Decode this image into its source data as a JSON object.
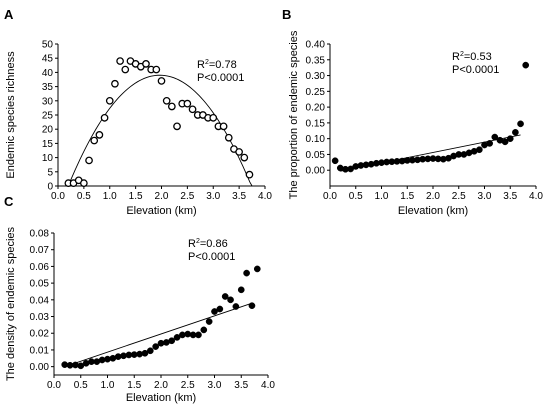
{
  "chart_data": [
    {
      "id": "A",
      "type": "scatter",
      "panel_label": "A",
      "xlabel": "Elevation (km)",
      "ylabel": "Endemic species richness",
      "xlim": [
        0,
        4.0
      ],
      "ylim": [
        0,
        50
      ],
      "xticks": [
        "0.0",
        "0.5",
        "1.0",
        "1.5",
        "2.0",
        "2.5",
        "3.0",
        "3.5",
        "4.0"
      ],
      "yticks": [
        "0",
        "5",
        "10",
        "15",
        "20",
        "25",
        "30",
        "35",
        "40",
        "45",
        "50"
      ],
      "marker": "open",
      "stats": {
        "r2_prefix": "R",
        "r2_sup": "2",
        "r2_value": "=0.78",
        "p": "P<0.0001"
      },
      "fit": {
        "kind": "quadratic",
        "a": -12.45,
        "b": 49.0,
        "c": -9.2
      },
      "points": [
        {
          "x": 0.2,
          "y": 1
        },
        {
          "x": 0.3,
          "y": 1
        },
        {
          "x": 0.4,
          "y": 2
        },
        {
          "x": 0.5,
          "y": 1
        },
        {
          "x": 0.6,
          "y": 9
        },
        {
          "x": 0.7,
          "y": 16
        },
        {
          "x": 0.8,
          "y": 18
        },
        {
          "x": 0.9,
          "y": 24
        },
        {
          "x": 1.0,
          "y": 30
        },
        {
          "x": 1.1,
          "y": 36
        },
        {
          "x": 1.2,
          "y": 44
        },
        {
          "x": 1.3,
          "y": 41
        },
        {
          "x": 1.4,
          "y": 44
        },
        {
          "x": 1.5,
          "y": 43
        },
        {
          "x": 1.6,
          "y": 42
        },
        {
          "x": 1.7,
          "y": 43
        },
        {
          "x": 1.8,
          "y": 41
        },
        {
          "x": 1.9,
          "y": 41
        },
        {
          "x": 2.0,
          "y": 37
        },
        {
          "x": 2.1,
          "y": 30
        },
        {
          "x": 2.2,
          "y": 28
        },
        {
          "x": 2.3,
          "y": 21
        },
        {
          "x": 2.4,
          "y": 29
        },
        {
          "x": 2.5,
          "y": 29
        },
        {
          "x": 2.6,
          "y": 27
        },
        {
          "x": 2.7,
          "y": 25
        },
        {
          "x": 2.8,
          "y": 25
        },
        {
          "x": 2.9,
          "y": 24
        },
        {
          "x": 3.0,
          "y": 24
        },
        {
          "x": 3.1,
          "y": 21
        },
        {
          "x": 3.2,
          "y": 21
        },
        {
          "x": 3.3,
          "y": 17
        },
        {
          "x": 3.4,
          "y": 13
        },
        {
          "x": 3.5,
          "y": 12
        },
        {
          "x": 3.6,
          "y": 10
        },
        {
          "x": 3.7,
          "y": 4
        }
      ]
    },
    {
      "id": "B",
      "type": "scatter",
      "panel_label": "B",
      "xlabel": "Elevation (km)",
      "ylabel": "The proportion of endemic species",
      "xlim": [
        0,
        4.0
      ],
      "ylim": [
        -0.05,
        0.4
      ],
      "xticks": [
        "0.0",
        "0.5",
        "1.0",
        "1.5",
        "2.0",
        "2.5",
        "3.0",
        "3.5",
        "4.0"
      ],
      "yticks": [
        "0.00",
        "0.05",
        "0.10",
        "0.15",
        "0.20",
        "0.25",
        "0.30",
        "0.35",
        "0.40"
      ],
      "marker": "filled",
      "stats": {
        "r2_prefix": "R",
        "r2_sup": "2",
        "r2_value": "=0.53",
        "p": "P<0.0001"
      },
      "fit": {
        "kind": "linear",
        "x0": 0.2,
        "y0": -0.003,
        "x1": 3.7,
        "y1": 0.112
      },
      "points": [
        {
          "x": 0.1,
          "y": 0.03
        },
        {
          "x": 0.2,
          "y": 0.007
        },
        {
          "x": 0.3,
          "y": 0.003
        },
        {
          "x": 0.4,
          "y": 0.004
        },
        {
          "x": 0.5,
          "y": 0.012
        },
        {
          "x": 0.6,
          "y": 0.015
        },
        {
          "x": 0.7,
          "y": 0.017
        },
        {
          "x": 0.8,
          "y": 0.019
        },
        {
          "x": 0.9,
          "y": 0.022
        },
        {
          "x": 1.0,
          "y": 0.024
        },
        {
          "x": 1.1,
          "y": 0.026
        },
        {
          "x": 1.2,
          "y": 0.027
        },
        {
          "x": 1.3,
          "y": 0.028
        },
        {
          "x": 1.4,
          "y": 0.029
        },
        {
          "x": 1.5,
          "y": 0.031
        },
        {
          "x": 1.6,
          "y": 0.032
        },
        {
          "x": 1.7,
          "y": 0.033
        },
        {
          "x": 1.8,
          "y": 0.035
        },
        {
          "x": 1.9,
          "y": 0.036
        },
        {
          "x": 2.0,
          "y": 0.037
        },
        {
          "x": 2.1,
          "y": 0.036
        },
        {
          "x": 2.2,
          "y": 0.035
        },
        {
          "x": 2.3,
          "y": 0.038
        },
        {
          "x": 2.4,
          "y": 0.045
        },
        {
          "x": 2.5,
          "y": 0.05
        },
        {
          "x": 2.6,
          "y": 0.05
        },
        {
          "x": 2.7,
          "y": 0.055
        },
        {
          "x": 2.8,
          "y": 0.06
        },
        {
          "x": 2.9,
          "y": 0.065
        },
        {
          "x": 3.0,
          "y": 0.08
        },
        {
          "x": 3.1,
          "y": 0.085
        },
        {
          "x": 3.2,
          "y": 0.105
        },
        {
          "x": 3.3,
          "y": 0.095
        },
        {
          "x": 3.4,
          "y": 0.09
        },
        {
          "x": 3.5,
          "y": 0.1
        },
        {
          "x": 3.6,
          "y": 0.12
        },
        {
          "x": 3.7,
          "y": 0.147
        },
        {
          "x": 3.8,
          "y": 0.333
        }
      ]
    },
    {
      "id": "C",
      "type": "scatter",
      "panel_label": "C",
      "xlabel": "Elevation (km)",
      "ylabel": "The density of endemic species",
      "xlim": [
        0,
        4.0
      ],
      "ylim": [
        -0.005,
        0.08
      ],
      "xticks": [
        "0.0",
        "0.5",
        "1.0",
        "1.5",
        "2.0",
        "2.5",
        "3.0",
        "3.5",
        "4.0"
      ],
      "yticks": [
        "0.00",
        "0.01",
        "0.02",
        "0.03",
        "0.04",
        "0.05",
        "0.06",
        "0.07",
        "0.08"
      ],
      "marker": "filled",
      "stats": {
        "r2_prefix": "R",
        "r2_sup": "2",
        "r2_value": "=0.86",
        "p": "P<0.0001"
      },
      "fit": {
        "kind": "linear",
        "x0": 0.2,
        "y0": 0.0,
        "x1": 3.7,
        "y1": 0.038
      },
      "points": [
        {
          "x": 0.2,
          "y": 0.0012
        },
        {
          "x": 0.3,
          "y": 0.0008
        },
        {
          "x": 0.4,
          "y": 0.001
        },
        {
          "x": 0.5,
          "y": 0.0005
        },
        {
          "x": 0.6,
          "y": 0.002
        },
        {
          "x": 0.7,
          "y": 0.003
        },
        {
          "x": 0.8,
          "y": 0.003
        },
        {
          "x": 0.9,
          "y": 0.004
        },
        {
          "x": 1.0,
          "y": 0.0045
        },
        {
          "x": 1.1,
          "y": 0.005
        },
        {
          "x": 1.2,
          "y": 0.006
        },
        {
          "x": 1.3,
          "y": 0.0065
        },
        {
          "x": 1.4,
          "y": 0.007
        },
        {
          "x": 1.5,
          "y": 0.0072
        },
        {
          "x": 1.6,
          "y": 0.0075
        },
        {
          "x": 1.7,
          "y": 0.008
        },
        {
          "x": 1.8,
          "y": 0.0095
        },
        {
          "x": 1.9,
          "y": 0.012
        },
        {
          "x": 2.0,
          "y": 0.014
        },
        {
          "x": 2.1,
          "y": 0.0145
        },
        {
          "x": 2.2,
          "y": 0.0155
        },
        {
          "x": 2.3,
          "y": 0.0175
        },
        {
          "x": 2.4,
          "y": 0.019
        },
        {
          "x": 2.5,
          "y": 0.0195
        },
        {
          "x": 2.6,
          "y": 0.019
        },
        {
          "x": 2.7,
          "y": 0.019
        },
        {
          "x": 2.8,
          "y": 0.022
        },
        {
          "x": 2.9,
          "y": 0.027
        },
        {
          "x": 3.0,
          "y": 0.033
        },
        {
          "x": 3.1,
          "y": 0.0345
        },
        {
          "x": 3.2,
          "y": 0.042
        },
        {
          "x": 3.3,
          "y": 0.04
        },
        {
          "x": 3.4,
          "y": 0.036
        },
        {
          "x": 3.5,
          "y": 0.046
        },
        {
          "x": 3.6,
          "y": 0.056
        },
        {
          "x": 3.7,
          "y": 0.0365
        },
        {
          "x": 3.8,
          "y": 0.0585
        }
      ]
    }
  ]
}
